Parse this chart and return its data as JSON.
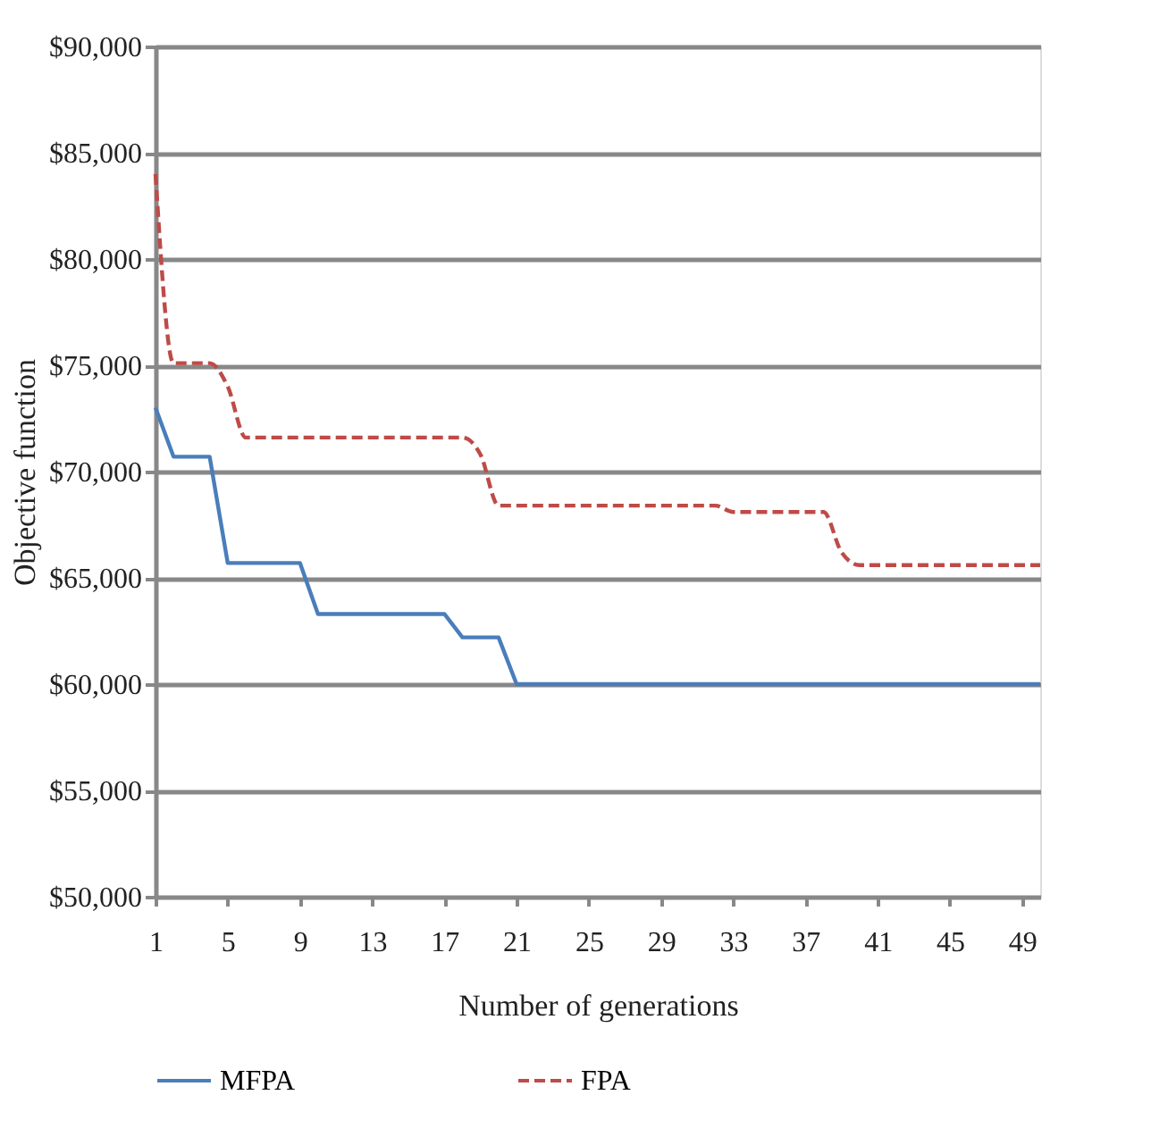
{
  "chart_data": {
    "type": "line",
    "xlabel": "Number of generations",
    "ylabel": "Objective function",
    "categories": [
      "1",
      null,
      null,
      null,
      "5",
      null,
      null,
      null,
      "9",
      null,
      null,
      null,
      "13",
      null,
      null,
      null,
      "17",
      null,
      null,
      null,
      "21",
      null,
      null,
      null,
      "25",
      null,
      null,
      null,
      "29",
      null,
      null,
      null,
      "33",
      null,
      null,
      null,
      "37",
      null,
      null,
      null,
      "41",
      null,
      null,
      null,
      "45",
      null,
      null,
      null,
      "49",
      null
    ],
    "ylim": [
      50000,
      90000
    ],
    "yticks": [
      {
        "value": 50000,
        "label": "$50,000"
      },
      {
        "value": 55000,
        "label": "$55,000"
      },
      {
        "value": 60000,
        "label": "$60,000"
      },
      {
        "value": 65000,
        "label": "$65,000"
      },
      {
        "value": 70000,
        "label": "$70,000"
      },
      {
        "value": 75000,
        "label": "$75,000"
      },
      {
        "value": 80000,
        "label": "$80,000"
      },
      {
        "value": 85000,
        "label": "$85,000"
      },
      {
        "value": 90000,
        "label": "$90,000"
      }
    ],
    "grid": "y",
    "legend": "bottom",
    "marker": "none",
    "series": [
      {
        "name": "MFPA",
        "color": "#4a7ebb",
        "line_style": "solid",
        "values": [
          73000,
          70700,
          70700,
          70700,
          65700,
          65700,
          65700,
          65700,
          65700,
          63300,
          63300,
          63300,
          63300,
          63300,
          63300,
          63300,
          63300,
          62200,
          62200,
          62200,
          60000,
          60000,
          60000,
          60000,
          60000,
          60000,
          60000,
          60000,
          60000,
          60000,
          60000,
          60000,
          60000,
          60000,
          60000,
          60000,
          60000,
          60000,
          60000,
          60000,
          60000,
          60000,
          60000,
          60000,
          60000,
          60000,
          60000,
          60000,
          60000,
          60000
        ]
      },
      {
        "name": "FPA",
        "color": "#be4b48",
        "line_style": "dashed",
        "values": [
          84000,
          75100,
          75100,
          75100,
          74000,
          71600,
          71600,
          71600,
          71600,
          71600,
          71600,
          71600,
          71600,
          71600,
          71600,
          71600,
          71600,
          71600,
          70800,
          68400,
          68400,
          68400,
          68400,
          68400,
          68400,
          68400,
          68400,
          68400,
          68400,
          68400,
          68400,
          68400,
          68100,
          68100,
          68100,
          68100,
          68100,
          68100,
          66200,
          65600,
          65600,
          65600,
          65600,
          65600,
          65600,
          65600,
          65600,
          65600,
          65600,
          65600
        ]
      }
    ]
  }
}
